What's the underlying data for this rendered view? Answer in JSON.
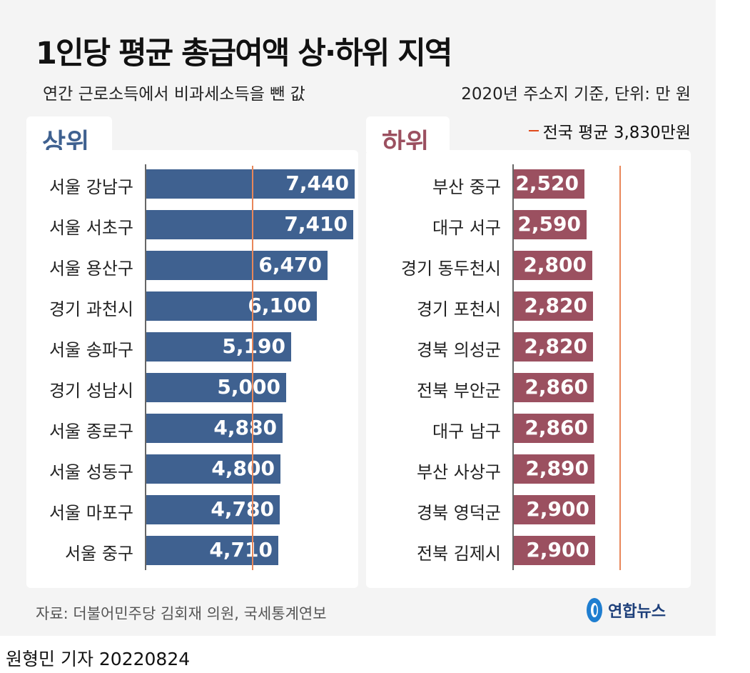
{
  "title": "1인당 평균 총급여액 상·하위 지역",
  "subtitle_left": "연간 근로소득에서 비과세소득을 뺀 값",
  "subtitle_right": "2020년 주소지 기준, 단위: 만 원",
  "legend_avg": "전국 평균 3,830만원",
  "source": "자료: 더불어민주당 김회재 의원, 국세통계연보",
  "logo_text": "연합뉴스",
  "credit": "원형민 기자  20220824",
  "colors": {
    "top": "#3f6190",
    "bottom": "#9b5060",
    "average_line": "#e8875a"
  },
  "chart_data": [
    {
      "type": "bar",
      "orientation": "horizontal",
      "title": "상위",
      "reference_line": 3830,
      "categories": [
        "서울 강남구",
        "서울 서초구",
        "서울 용산구",
        "경기 과천시",
        "서울 송파구",
        "경기 성남시",
        "서울 종로구",
        "서울 성동구",
        "서울 마포구",
        "서울 중구"
      ],
      "values": [
        7440,
        7410,
        6470,
        6100,
        5190,
        5000,
        4880,
        4800,
        4780,
        4710
      ],
      "labels": [
        "7,440",
        "7,410",
        "6,470",
        "6,100",
        "5,190",
        "5,000",
        "4,880",
        "4,800",
        "4,780",
        "4,710"
      ]
    },
    {
      "type": "bar",
      "orientation": "horizontal",
      "title": "하위",
      "reference_line": 3830,
      "categories": [
        "부산 중구",
        "대구 서구",
        "경기 동두천시",
        "경기 포천시",
        "경북 의성군",
        "전북 부안군",
        "대구 남구",
        "부산 사상구",
        "경북 영덕군",
        "전북 김제시"
      ],
      "values": [
        2520,
        2590,
        2800,
        2820,
        2820,
        2860,
        2860,
        2890,
        2900,
        2900
      ],
      "labels": [
        "2,520",
        "2,590",
        "2,800",
        "2,820",
        "2,820",
        "2,860",
        "2,860",
        "2,890",
        "2,900",
        "2,900"
      ]
    }
  ]
}
